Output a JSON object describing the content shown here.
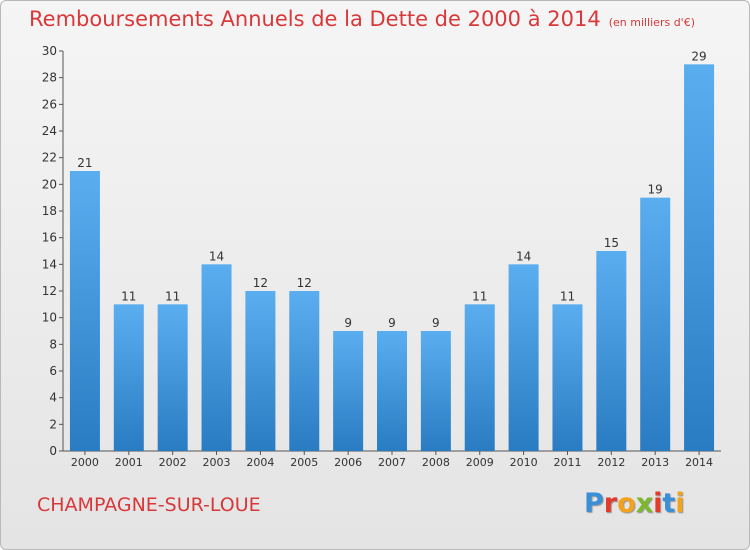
{
  "header": {
    "title": "Remboursements Annuels de la Dette de 2000 à 2014",
    "subtitle": "(en milliers d'€)"
  },
  "footer": {
    "place": "CHAMPAGNE-SUR-LOUE",
    "logo_letters": [
      "P",
      "r",
      "o",
      "x",
      "i",
      "t",
      "i"
    ],
    "logo_colors": [
      "#3a8fd6",
      "#e23b2b",
      "#f2a21d",
      "#7cb82f",
      "#e23b2b",
      "#3a8fd6",
      "#f2a21d"
    ]
  },
  "chart_data": {
    "type": "bar",
    "title": "Remboursements Annuels de la Dette de 2000 à 2014",
    "categories": [
      "2000",
      "2001",
      "2002",
      "2003",
      "2004",
      "2005",
      "2006",
      "2007",
      "2008",
      "2009",
      "2010",
      "2011",
      "2012",
      "2013",
      "2014"
    ],
    "values": [
      21,
      11,
      11,
      14,
      12,
      12,
      9,
      9,
      9,
      11,
      14,
      11,
      15,
      19,
      29
    ],
    "ylim": [
      0,
      30
    ],
    "yticks": [
      0,
      2,
      4,
      6,
      8,
      10,
      12,
      14,
      16,
      18,
      20,
      22,
      24,
      26,
      28,
      30
    ],
    "grid": false,
    "bar_color_top": "#5aaef0",
    "bar_color_bottom": "#2a7cc2"
  }
}
